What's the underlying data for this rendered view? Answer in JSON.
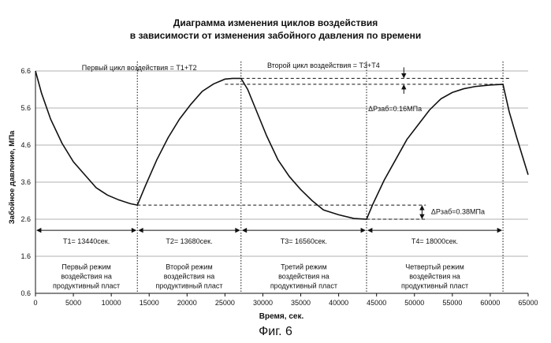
{
  "title_line1": "Диаграмма изменения циклов воздействия",
  "title_line2": "в зависимости от изменения забойного давления по времени",
  "figure_caption": "Фиг. 6",
  "chart_data": {
    "type": "line",
    "xlabel": "Время, сек.",
    "ylabel": "Забойное давление, МПа",
    "xlim": [
      0,
      65000
    ],
    "ylim": [
      0.6,
      6.6
    ],
    "x_ticks": [
      0,
      5000,
      10000,
      15000,
      20000,
      25000,
      30000,
      35000,
      40000,
      45000,
      50000,
      55000,
      60000,
      65000
    ],
    "y_ticks": [
      0.6,
      1.6,
      2.6,
      3.6,
      4.6,
      5.6,
      6.6
    ],
    "x_tick_labels": [
      "0",
      "5000",
      "10000",
      "15000",
      "20000",
      "25000",
      "30000",
      "35000",
      "40000",
      "45000",
      "50000",
      "55000",
      "60000",
      "65000"
    ],
    "y_tick_labels": [
      "0.6",
      "1.6",
      "2.6",
      "3.6",
      "4.6",
      "5.6",
      "6.6"
    ],
    "grid": "horizontal",
    "series": [
      {
        "x": [
          0,
          800,
          2000,
          3500,
          5000,
          6500,
          8000,
          9500,
          11000,
          12500,
          13440,
          14500,
          16000,
          17500,
          19000,
          20500,
          22000,
          23500,
          25000,
          26000,
          27120,
          28000,
          29000,
          30500,
          32000,
          33500,
          35000,
          36500,
          38000,
          40000,
          42000,
          43680,
          44500,
          46000,
          47500,
          49000,
          50500,
          52000,
          53500,
          55000,
          56500,
          58000,
          60000,
          61680,
          62500,
          63500,
          65000
        ],
        "y": [
          6.6,
          6.0,
          5.3,
          4.65,
          4.15,
          3.8,
          3.45,
          3.25,
          3.12,
          3.02,
          2.98,
          3.5,
          4.2,
          4.8,
          5.3,
          5.7,
          6.05,
          6.25,
          6.38,
          6.4,
          6.4,
          6.1,
          5.6,
          4.85,
          4.2,
          3.75,
          3.4,
          3.1,
          2.85,
          2.72,
          2.62,
          2.6,
          3.0,
          3.65,
          4.2,
          4.75,
          5.15,
          5.55,
          5.85,
          6.02,
          6.12,
          6.18,
          6.22,
          6.24,
          5.5,
          4.8,
          3.8
        ]
      }
    ],
    "phase_boundaries": [
      13440,
      27120,
      43680,
      61680
    ],
    "cycle_labels": [
      {
        "text": "Первый цикл воздействия = Т1+Т2"
      },
      {
        "text": "Второй цикл воздействия  = Т3+Т4"
      }
    ],
    "phases": [
      {
        "duration": "Т1= 13440сек.",
        "mode": [
          "Первый режим",
          "воздействия на",
          "продуктивный пласт"
        ]
      },
      {
        "duration": "Т2= 13680сек.",
        "mode": [
          "Второй режим",
          "воздействия на",
          "продуктивный пласт"
        ]
      },
      {
        "duration": "Т3= 16560сек.",
        "mode": [
          "Третий режим",
          "воздействия на",
          "продуктивный пласт"
        ]
      },
      {
        "duration": "Т4= 18000сек.",
        "mode": [
          "Четвертый режим",
          "воздействия на",
          "продуктивный пласт"
        ]
      }
    ],
    "annotations": [
      {
        "text": "ΔPзаб=0.16МПа",
        "levels": [
          6.4,
          6.24
        ]
      },
      {
        "text": "ΔPзаб=0.38МПа",
        "levels": [
          2.98,
          2.6
        ]
      }
    ]
  }
}
